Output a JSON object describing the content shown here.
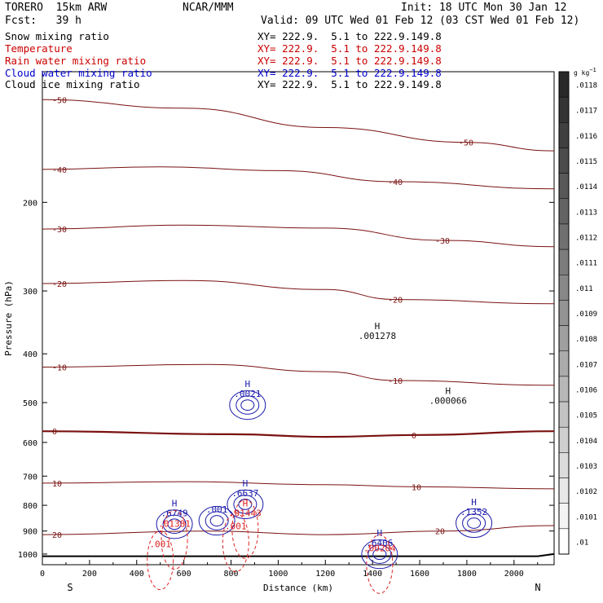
{
  "header": {
    "model": "TORERO  15km ARW",
    "center": "NCAR/MMM",
    "init": "Init: 18 UTC Mon 30 Jan 12",
    "fcst": "Fcst:   39 h",
    "valid": "Valid: 09 UTC Wed 01 Feb 12 (03 CST Wed 01 Feb 12)"
  },
  "fields": [
    {
      "name": "Snow mixing ratio",
      "xy": "XY= 222.9.  5.1 to 222.9.149.8",
      "color": "#000000"
    },
    {
      "name": "Temperature",
      "xy": "XY= 222.9.  5.1 to 222.9.149.8",
      "color": "#cc0000"
    },
    {
      "name": "Rain water mixing ratio",
      "xy": "XY= 222.9.  5.1 to 222.9.149.8",
      "color": "#cc0000"
    },
    {
      "name": "Cloud water mixing ratio",
      "xy": "XY= 222.9.  5.1 to 222.9.149.8",
      "color": "#0000cc"
    },
    {
      "name": "Cloud ice mixing ratio",
      "xy": "XY= 222.9.  5.1 to 222.9.149.8",
      "color": "#000000"
    }
  ],
  "colors": {
    "temperature": "#7a1111",
    "rain": "#dd2222",
    "cloud_water": "#1a1aaa",
    "snow": "#111111",
    "terrain": "#000000"
  },
  "chart_data": {
    "type": "contour",
    "x_axis": {
      "label": "Distance (km)",
      "range": [
        0,
        2170
      ],
      "ticks": [
        0,
        200,
        400,
        600,
        800,
        1000,
        1200,
        1400,
        1600,
        1800,
        2000
      ],
      "end_labels": {
        "left": "S",
        "right": "N"
      }
    },
    "y_axis": {
      "label": "Pressure (hPa)",
      "scale": "log",
      "range": [
        1050,
        110
      ],
      "ticks": [
        200,
        300,
        400,
        500,
        600,
        700,
        800,
        900,
        1000
      ]
    },
    "colorbar": {
      "unit_label": "g kg",
      "unit_exp": "−1",
      "ticks": [
        ".0118",
        ".0117",
        ".0116",
        ".0115",
        ".0114",
        ".0113",
        ".0112",
        ".0111",
        ".011",
        ".0109",
        ".0108",
        ".0107",
        ".0106",
        ".0105",
        ".0104",
        ".0103",
        ".0102",
        ".0101",
        ".01"
      ]
    },
    "temperature_isotherms": [
      {
        "label": "-50",
        "points": [
          [
            0,
            125
          ],
          [
            600,
            130
          ],
          [
            1200,
            142
          ],
          [
            1800,
            152
          ],
          [
            2170,
            158
          ]
        ]
      },
      {
        "label": "-40",
        "points": [
          [
            0,
            172
          ],
          [
            500,
            170
          ],
          [
            1000,
            173
          ],
          [
            1500,
            182
          ],
          [
            2170,
            188
          ]
        ]
      },
      {
        "label": "-30",
        "points": [
          [
            0,
            226
          ],
          [
            600,
            222
          ],
          [
            1200,
            225
          ],
          [
            1700,
            238
          ],
          [
            2170,
            245
          ]
        ]
      },
      {
        "label": "-20",
        "points": [
          [
            0,
            290
          ],
          [
            600,
            286
          ],
          [
            1200,
            298
          ],
          [
            1500,
            312
          ],
          [
            2170,
            318
          ]
        ]
      },
      {
        "label": "-10",
        "points": [
          [
            0,
            425
          ],
          [
            700,
            420
          ],
          [
            1200,
            434
          ],
          [
            1500,
            452
          ],
          [
            2170,
            462
          ]
        ]
      },
      {
        "label": "0",
        "points": [
          [
            0,
            570
          ],
          [
            800,
            578
          ],
          [
            1200,
            585
          ],
          [
            1600,
            580
          ],
          [
            2170,
            570
          ]
        ]
      },
      {
        "label": "10",
        "points": [
          [
            0,
            723
          ],
          [
            600,
            718
          ],
          [
            1200,
            728
          ],
          [
            1600,
            735
          ],
          [
            2170,
            742
          ]
        ]
      },
      {
        "label": "20",
        "points": [
          [
            0,
            915
          ],
          [
            700,
            900
          ],
          [
            1200,
            915
          ],
          [
            1700,
            900
          ],
          [
            2170,
            878
          ]
        ]
      }
    ],
    "cloud_water": [
      {
        "label": "H",
        "value": ".6749",
        "x": 560,
        "p": 828
      },
      {
        "label": "",
        "value": ".001",
        "x": 740,
        "p": 815
      },
      {
        "label": "H",
        "value": ".6637",
        "x": 860,
        "p": 756
      },
      {
        "label": "H",
        "value": ".1352",
        "x": 1830,
        "p": 824
      },
      {
        "label": "H",
        "value": ".6406",
        "x": 1430,
        "p": 950
      },
      {
        "label": "H",
        "value": ".0021",
        "x": 870,
        "p": 480
      }
    ],
    "rain_water": [
      {
        "label": "",
        "value": ".01381",
        "x": 560,
        "p": 870
      },
      {
        "label": "H",
        "value": ".01443",
        "x": 860,
        "p": 828
      },
      {
        "label": "",
        "value": ".001",
        "x": 820,
        "p": 880
      },
      {
        "label": "",
        "value": ".001",
        "x": 500,
        "p": 955
      },
      {
        "label": "",
        "value": ".00204",
        "x": 1430,
        "p": 972
      }
    ],
    "snow": [
      {
        "label": "H",
        "value": ".001278",
        "x": 1420,
        "p": 368
      },
      {
        "label": "H",
        "value": ".000066",
        "x": 1720,
        "p": 495
      }
    ]
  }
}
